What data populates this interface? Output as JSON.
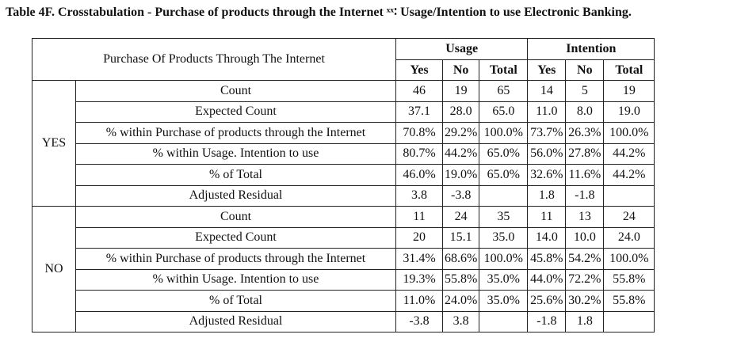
{
  "title": "Table 4F. Crosstabulation - Purchase of products through the Internet ˣˣ∶ Usage/Intention to use Electronic Banking.",
  "header": {
    "corner": "Purchase Of Products Through The Internet",
    "groups": [
      "Usage",
      "Intention"
    ],
    "subcols": [
      "Yes",
      "No",
      "Total",
      "Yes",
      "No",
      "Total"
    ]
  },
  "row_labels": [
    "Count",
    "Expected Count",
    "% within Purchase of products through the Internet",
    "% within Usage. Intention to use",
    "% of Total",
    "Adjusted Residual"
  ],
  "groups": [
    {
      "label": "YES",
      "rows": [
        [
          "46",
          "19",
          "65",
          "14",
          "5",
          "19"
        ],
        [
          "37.1",
          "28.0",
          "65.0",
          "11.0",
          "8.0",
          "19.0"
        ],
        [
          "70.8%",
          "29.2%",
          "100.0%",
          "73.7%",
          "26.3%",
          "100.0%"
        ],
        [
          "80.7%",
          "44.2%",
          "65.0%",
          "56.0%",
          "27.8%",
          "44.2%"
        ],
        [
          "46.0%",
          "19.0%",
          "65.0%",
          "32.6%",
          "11.6%",
          "44.2%"
        ],
        [
          "3.8",
          "-3.8",
          "",
          "1.8",
          "-1.8",
          ""
        ]
      ]
    },
    {
      "label": "NO",
      "rows": [
        [
          "11",
          "24",
          "35",
          "11",
          "13",
          "24"
        ],
        [
          "20",
          "15.1",
          "35.0",
          "14.0",
          "10.0",
          "24.0"
        ],
        [
          "31.4%",
          "68.6%",
          "100.0%",
          "45.8%",
          "54.2%",
          "100.0%"
        ],
        [
          "19.3%",
          "55.8%",
          "35.0%",
          "44.0%",
          "72.2%",
          "55.8%"
        ],
        [
          "11.0%",
          "24.0%",
          "35.0%",
          "25.6%",
          "30.2%",
          "55.8%"
        ],
        [
          "-3.8",
          "3.8",
          "",
          "-1.8",
          "1.8",
          ""
        ]
      ]
    }
  ]
}
